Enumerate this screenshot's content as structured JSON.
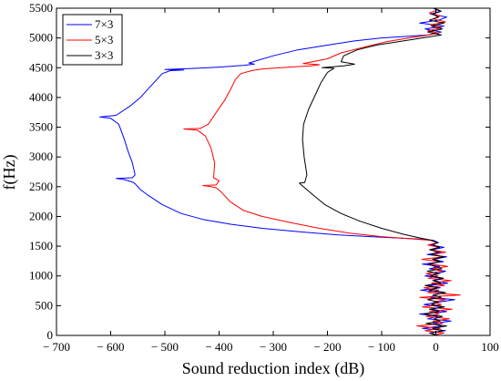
{
  "chart_data": {
    "type": "line",
    "title": "",
    "xlabel": "Sound reduction index (dB)",
    "ylabel": "f(Hz)",
    "xlim": [
      -700,
      100
    ],
    "ylim": [
      0,
      5500
    ],
    "xticks": [
      -700,
      -600,
      -500,
      -400,
      -300,
      -200,
      -100,
      0,
      100
    ],
    "yticks": [
      0,
      500,
      1000,
      1500,
      2000,
      2500,
      3000,
      3500,
      4000,
      4500,
      5000,
      5500
    ],
    "xtick_labels": [
      "− 700",
      "− 600",
      "− 500",
      "− 400",
      "− 300",
      "− 200",
      "− 100",
      "0",
      "100"
    ],
    "ytick_labels": [
      "0",
      "500",
      "1000",
      "1500",
      "2000",
      "2500",
      "3000",
      "3500",
      "4000",
      "4500",
      "5000",
      "5500"
    ],
    "grid": false,
    "legend_position": "top-left",
    "series": [
      {
        "name": "7×3",
        "color": "#0000ff",
        "points": [
          [
            5,
            0
          ],
          [
            -12,
            40
          ],
          [
            18,
            80
          ],
          [
            -25,
            120
          ],
          [
            10,
            160
          ],
          [
            -5,
            200
          ],
          [
            28,
            240
          ],
          [
            -15,
            280
          ],
          [
            4,
            320
          ],
          [
            -30,
            360
          ],
          [
            20,
            400
          ],
          [
            -8,
            440
          ],
          [
            12,
            480
          ],
          [
            -22,
            520
          ],
          [
            6,
            560
          ],
          [
            35,
            600
          ],
          [
            -10,
            640
          ],
          [
            -3,
            680
          ],
          [
            15,
            720
          ],
          [
            -28,
            760
          ],
          [
            8,
            800
          ],
          [
            -14,
            840
          ],
          [
            22,
            880
          ],
          [
            -6,
            920
          ],
          [
            10,
            960
          ],
          [
            -20,
            1000
          ],
          [
            3,
            1040
          ],
          [
            18,
            1080
          ],
          [
            -12,
            1120
          ],
          [
            7,
            1160
          ],
          [
            -25,
            1200
          ],
          [
            14,
            1240
          ],
          [
            -4,
            1280
          ],
          [
            20,
            1320
          ],
          [
            -16,
            1360
          ],
          [
            9,
            1400
          ],
          [
            -7,
            1440
          ],
          [
            15,
            1480
          ],
          [
            -10,
            1520
          ],
          [
            5,
            1560
          ],
          [
            -5,
            1600
          ],
          [
            -30,
            1620
          ],
          [
            -100,
            1650
          ],
          [
            -180,
            1690
          ],
          [
            -250,
            1740
          ],
          [
            -320,
            1800
          ],
          [
            -380,
            1870
          ],
          [
            -430,
            1950
          ],
          [
            -470,
            2050
          ],
          [
            -505,
            2200
          ],
          [
            -530,
            2350
          ],
          [
            -545,
            2450
          ],
          [
            -555,
            2550
          ],
          [
            -560,
            2580
          ],
          [
            -575,
            2620
          ],
          [
            -590,
            2640
          ],
          [
            -560,
            2650
          ],
          [
            -555,
            2700
          ],
          [
            -560,
            2900
          ],
          [
            -568,
            3100
          ],
          [
            -575,
            3300
          ],
          [
            -585,
            3550
          ],
          [
            -600,
            3650
          ],
          [
            -620,
            3670
          ],
          [
            -590,
            3700
          ],
          [
            -565,
            3850
          ],
          [
            -545,
            4000
          ],
          [
            -530,
            4150
          ],
          [
            -515,
            4300
          ],
          [
            -505,
            4400
          ],
          [
            -490,
            4450
          ],
          [
            -465,
            4460
          ],
          [
            -500,
            4470
          ],
          [
            -440,
            4490
          ],
          [
            -400,
            4510
          ],
          [
            -355,
            4540
          ],
          [
            -335,
            4560
          ],
          [
            -345,
            4580
          ],
          [
            -300,
            4700
          ],
          [
            -255,
            4800
          ],
          [
            -200,
            4880
          ],
          [
            -150,
            4950
          ],
          [
            -100,
            5000
          ],
          [
            -50,
            5030
          ],
          [
            -15,
            5050
          ],
          [
            10,
            5100
          ],
          [
            -20,
            5150
          ],
          [
            15,
            5200
          ],
          [
            -30,
            5250
          ],
          [
            5,
            5300
          ],
          [
            20,
            5350
          ],
          [
            -10,
            5400
          ],
          [
            8,
            5450
          ],
          [
            -5,
            5500
          ]
        ]
      },
      {
        "name": "5×3",
        "color": "#ff0000",
        "points": [
          [
            -8,
            0
          ],
          [
            15,
            40
          ],
          [
            -20,
            80
          ],
          [
            8,
            120
          ],
          [
            -35,
            160
          ],
          [
            12,
            200
          ],
          [
            -5,
            240
          ],
          [
            25,
            280
          ],
          [
            -18,
            320
          ],
          [
            6,
            360
          ],
          [
            -12,
            400
          ],
          [
            30,
            440
          ],
          [
            -25,
            480
          ],
          [
            10,
            520
          ],
          [
            -4,
            560
          ],
          [
            18,
            600
          ],
          [
            -30,
            640
          ],
          [
            45,
            680
          ],
          [
            -15,
            720
          ],
          [
            5,
            760
          ],
          [
            -22,
            800
          ],
          [
            16,
            840
          ],
          [
            -8,
            880
          ],
          [
            28,
            920
          ],
          [
            -14,
            960
          ],
          [
            4,
            1000
          ],
          [
            -18,
            1040
          ],
          [
            12,
            1080
          ],
          [
            -6,
            1120
          ],
          [
            22,
            1160
          ],
          [
            -10,
            1200
          ],
          [
            8,
            1240
          ],
          [
            -26,
            1280
          ],
          [
            14,
            1320
          ],
          [
            -4,
            1360
          ],
          [
            18,
            1400
          ],
          [
            -12,
            1440
          ],
          [
            6,
            1480
          ],
          [
            -15,
            1520
          ],
          [
            3,
            1560
          ],
          [
            -10,
            1600
          ],
          [
            -40,
            1620
          ],
          [
            -100,
            1660
          ],
          [
            -160,
            1720
          ],
          [
            -215,
            1800
          ],
          [
            -270,
            1900
          ],
          [
            -320,
            2000
          ],
          [
            -355,
            2100
          ],
          [
            -380,
            2250
          ],
          [
            -395,
            2400
          ],
          [
            -405,
            2480
          ],
          [
            -415,
            2500
          ],
          [
            -430,
            2520
          ],
          [
            -405,
            2530
          ],
          [
            -400,
            2600
          ],
          [
            -410,
            2650
          ],
          [
            -408,
            2900
          ],
          [
            -415,
            3150
          ],
          [
            -425,
            3350
          ],
          [
            -440,
            3450
          ],
          [
            -465,
            3470
          ],
          [
            -435,
            3480
          ],
          [
            -420,
            3550
          ],
          [
            -405,
            3750
          ],
          [
            -390,
            3950
          ],
          [
            -378,
            4150
          ],
          [
            -370,
            4300
          ],
          [
            -360,
            4400
          ],
          [
            -340,
            4450
          ],
          [
            -320,
            4480
          ],
          [
            -270,
            4510
          ],
          [
            -230,
            4530
          ],
          [
            -215,
            4550
          ],
          [
            -245,
            4570
          ],
          [
            -200,
            4650
          ],
          [
            -175,
            4750
          ],
          [
            -130,
            4850
          ],
          [
            -90,
            4940
          ],
          [
            -50,
            5000
          ],
          [
            -20,
            5040
          ],
          [
            5,
            5080
          ],
          [
            -15,
            5120
          ],
          [
            10,
            5170
          ],
          [
            -10,
            5220
          ],
          [
            18,
            5270
          ],
          [
            -5,
            5320
          ],
          [
            8,
            5370
          ],
          [
            -12,
            5420
          ],
          [
            3,
            5470
          ]
        ]
      },
      {
        "name": "3×3",
        "color": "#000000",
        "points": [
          [
            2,
            0
          ],
          [
            -10,
            40
          ],
          [
            14,
            80
          ],
          [
            -6,
            120
          ],
          [
            20,
            160
          ],
          [
            -18,
            200
          ],
          [
            8,
            240
          ],
          [
            -3,
            280
          ],
          [
            12,
            320
          ],
          [
            -22,
            360
          ],
          [
            6,
            400
          ],
          [
            -12,
            440
          ],
          [
            16,
            480
          ],
          [
            -8,
            520
          ],
          [
            4,
            560
          ],
          [
            -15,
            600
          ],
          [
            10,
            640
          ],
          [
            -5,
            680
          ],
          [
            18,
            720
          ],
          [
            -12,
            760
          ],
          [
            3,
            800
          ],
          [
            -20,
            840
          ],
          [
            9,
            880
          ],
          [
            -4,
            920
          ],
          [
            14,
            960
          ],
          [
            -10,
            1000
          ],
          [
            6,
            1040
          ],
          [
            -16,
            1080
          ],
          [
            11,
            1120
          ],
          [
            -2,
            1160
          ],
          [
            -14,
            1200
          ],
          [
            8,
            1240
          ],
          [
            -6,
            1280
          ],
          [
            15,
            1320
          ],
          [
            -9,
            1360
          ],
          [
            4,
            1400
          ],
          [
            -11,
            1440
          ],
          [
            7,
            1480
          ],
          [
            -5,
            1520
          ],
          [
            2,
            1560
          ],
          [
            -8,
            1600
          ],
          [
            -30,
            1640
          ],
          [
            -60,
            1700
          ],
          [
            -100,
            1800
          ],
          [
            -140,
            1920
          ],
          [
            -175,
            2050
          ],
          [
            -205,
            2200
          ],
          [
            -225,
            2350
          ],
          [
            -238,
            2450
          ],
          [
            -252,
            2560
          ],
          [
            -242,
            2570
          ],
          [
            -238,
            2700
          ],
          [
            -243,
            3000
          ],
          [
            -246,
            3300
          ],
          [
            -244,
            3550
          ],
          [
            -235,
            3800
          ],
          [
            -222,
            4050
          ],
          [
            -212,
            4250
          ],
          [
            -200,
            4420
          ],
          [
            -188,
            4490
          ],
          [
            -210,
            4500
          ],
          [
            -170,
            4530
          ],
          [
            -150,
            4560
          ],
          [
            -175,
            4600
          ],
          [
            -170,
            4700
          ],
          [
            -145,
            4800
          ],
          [
            -110,
            4880
          ],
          [
            -60,
            4950
          ],
          [
            -25,
            5000
          ],
          [
            10,
            5050
          ],
          [
            -15,
            5100
          ],
          [
            12,
            5150
          ],
          [
            -8,
            5200
          ],
          [
            15,
            5250
          ],
          [
            -12,
            5300
          ],
          [
            5,
            5350
          ],
          [
            -6,
            5400
          ],
          [
            10,
            5450
          ],
          [
            -3,
            5500
          ]
        ]
      }
    ]
  }
}
